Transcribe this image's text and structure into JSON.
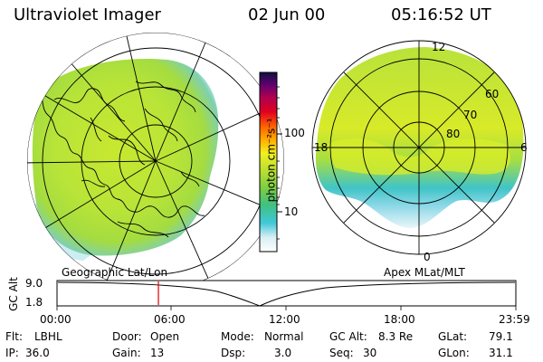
{
  "header": {
    "title": "Ultraviolet Imager",
    "date": "02 Jun 00",
    "time": "05:16:52 UT"
  },
  "colorbar": {
    "label": "photon cm⁻²s⁻¹",
    "ticks": [
      "100",
      "10"
    ],
    "scale": "log",
    "range": [
      2,
      700
    ]
  },
  "polar_plot": {
    "mlt_labels": [
      "12",
      "18",
      "6",
      "0"
    ],
    "mlat_labels": [
      "60",
      "70",
      "80"
    ]
  },
  "timeline": {
    "left_label": "Geographic Lat/Lon",
    "right_label": "Apex MLat/MLT",
    "axis_title": "GC Alt",
    "y_labels": [
      "9.0",
      "1.8"
    ],
    "x_labels": [
      "00:00",
      "06:00",
      "12:00",
      "18:00",
      "23:59"
    ],
    "current_time_fraction": 0.221,
    "current_time_color": "#e00000"
  },
  "info": {
    "flt_label": "Flt:",
    "flt_value": "LBHL",
    "ip_label": "IP:",
    "ip_value": "36.0",
    "door_label": "Door:",
    "door_value": "Open",
    "gain_label": "Gain:",
    "gain_value": "13",
    "mode_label": "Mode:",
    "mode_value": "Normal",
    "dsp_label": "Dsp:",
    "dsp_value": "3.0",
    "gcalt_label": "GC Alt:",
    "gcalt_value": "8.3 Re",
    "seq_label": "Seq:",
    "seq_value": "30",
    "glat_label": "GLat:",
    "glat_value": "79.1",
    "glon_label": "GLon:",
    "glon_value": "31.1"
  },
  "colors": {
    "aurora_main": "#c8e830",
    "aurora_yellow": "#e8ee20",
    "aurora_green": "#9edc40",
    "aurora_cyan": "#40c8d8",
    "aurora_light": "#bfe8f0"
  }
}
